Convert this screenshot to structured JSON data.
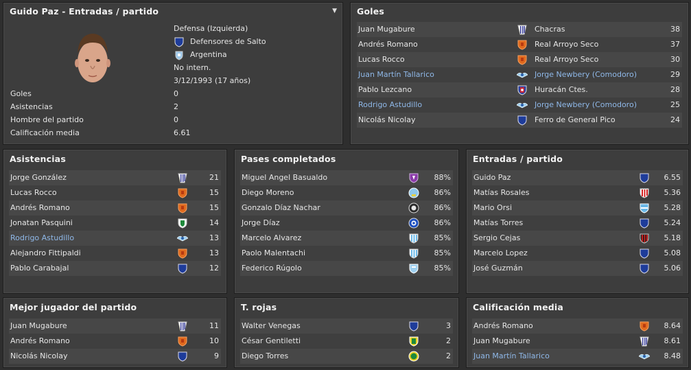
{
  "player": {
    "title": "Guido Paz - Entradas / partido",
    "position": "Defensa (Izquierda)",
    "club": "Defensores de Salto",
    "nation": "Argentina",
    "intl": "No intern.",
    "dob": "3/12/1993 (17 años)",
    "stats": [
      {
        "label": "Goles",
        "value": "0"
      },
      {
        "label": "Asistencias",
        "value": "2"
      },
      {
        "label": "Hombre del partido",
        "value": "0"
      },
      {
        "label": "Calificación media",
        "value": "6.61"
      }
    ]
  },
  "goles": {
    "title": "Goles",
    "rows": [
      {
        "name": "Juan Mugabure",
        "team": "Chacras",
        "value": "38",
        "link": false,
        "badge": "stripes-white"
      },
      {
        "name": "Andrés Romano",
        "team": "Real Arroyo Seco",
        "value": "37",
        "link": false,
        "badge": "shield-orange"
      },
      {
        "name": "Lucas Rocco",
        "team": "Real Arroyo Seco",
        "value": "30",
        "link": false,
        "badge": "shield-orange"
      },
      {
        "name": "Juan Martín Tallarico",
        "team": "Jorge Newbery (Comodoro)",
        "value": "29",
        "link": true,
        "badge": "wings"
      },
      {
        "name": "Pablo Lezcano",
        "team": "Huracán Ctes.",
        "value": "28",
        "link": false,
        "badge": "shield-red-blue"
      },
      {
        "name": "Rodrigo Astudillo",
        "team": "Jorge Newbery (Comodoro)",
        "value": "25",
        "link": true,
        "badge": "wings"
      },
      {
        "name": "Nicolás Nicolay",
        "team": "Ferro de General Pico",
        "value": "24",
        "link": false,
        "badge": "shield-blue"
      }
    ]
  },
  "asistencias": {
    "title": "Asistencias",
    "rows": [
      {
        "name": "Jorge González",
        "value": "21",
        "link": false,
        "badge": "stripes-white"
      },
      {
        "name": "Lucas Rocco",
        "value": "15",
        "link": false,
        "badge": "shield-orange"
      },
      {
        "name": "Andrés Romano",
        "value": "15",
        "link": false,
        "badge": "shield-orange"
      },
      {
        "name": "Jonatan Pasquini",
        "value": "14",
        "link": false,
        "badge": "shield-green"
      },
      {
        "name": "Rodrigo Astudillo",
        "value": "13",
        "link": true,
        "badge": "wings"
      },
      {
        "name": "Alejandro Fittipaldi",
        "value": "13",
        "link": false,
        "badge": "shield-orange"
      },
      {
        "name": "Pablo Carabajal",
        "value": "12",
        "link": false,
        "badge": "shield-blue"
      }
    ]
  },
  "pases": {
    "title": "Pases completados",
    "rows": [
      {
        "name": "Miguel Angel Basualdo",
        "value": "88%",
        "link": false,
        "badge": "shield-purple"
      },
      {
        "name": "Diego Moreno",
        "value": "86%",
        "link": false,
        "badge": "round-lightblue"
      },
      {
        "name": "Gonzalo Díaz Nachar",
        "value": "86%",
        "link": false,
        "badge": "round-dark"
      },
      {
        "name": "Jorge Díaz",
        "value": "86%",
        "link": false,
        "badge": "round-blue"
      },
      {
        "name": "Marcelo Alvarez",
        "value": "85%",
        "link": false,
        "badge": "stripes-lightblue"
      },
      {
        "name": "Paolo Malentachi",
        "value": "85%",
        "link": false,
        "badge": "stripes-lightblue"
      },
      {
        "name": "Federico Rúgolo",
        "value": "85%",
        "link": false,
        "badge": "shield-lightblue"
      }
    ]
  },
  "entradas": {
    "title": "Entradas / partido",
    "rows": [
      {
        "name": "Guido Paz",
        "value": "6.55",
        "link": false,
        "badge": "shield-blue"
      },
      {
        "name": "Matías Rosales",
        "value": "5.36",
        "link": false,
        "badge": "stripes-red"
      },
      {
        "name": "Mario Orsi",
        "value": "5.28",
        "link": false,
        "badge": "shield-sky"
      },
      {
        "name": "Matías Torres",
        "value": "5.24",
        "link": false,
        "badge": "shield-blue"
      },
      {
        "name": "Sergio Cejas",
        "value": "5.18",
        "link": false,
        "badge": "stripes-redblack"
      },
      {
        "name": "Marcelo Lopez",
        "value": "5.08",
        "link": false,
        "badge": "shield-blue"
      },
      {
        "name": "José Guzmán",
        "value": "5.06",
        "link": false,
        "badge": "shield-blue"
      }
    ]
  },
  "mejor": {
    "title": "Mejor jugador del partido",
    "rows": [
      {
        "name": "Juan Mugabure",
        "value": "11",
        "link": false,
        "badge": "stripes-white"
      },
      {
        "name": "Andrés Romano",
        "value": "10",
        "link": false,
        "badge": "shield-orange"
      },
      {
        "name": "Nicolás Nicolay",
        "value": "9",
        "link": false,
        "badge": "shield-blue"
      }
    ]
  },
  "rojas": {
    "title": "T. rojas",
    "rows": [
      {
        "name": "Walter Venegas",
        "value": "3",
        "link": false,
        "badge": "shield-blue"
      },
      {
        "name": "César Gentiletti",
        "value": "2",
        "link": false,
        "badge": "shield-yellowgreen"
      },
      {
        "name": "Diego Torres",
        "value": "2",
        "link": false,
        "badge": "round-green"
      }
    ]
  },
  "calificacion": {
    "title": "Calificación media",
    "rows": [
      {
        "name": "Andrés Romano",
        "value": "8.64",
        "link": false,
        "badge": "shield-orange"
      },
      {
        "name": "Juan Mugabure",
        "value": "8.61",
        "link": false,
        "badge": "stripes-white"
      },
      {
        "name": "Juan Martín Tallarico",
        "value": "8.48",
        "link": true,
        "badge": "wings"
      }
    ]
  },
  "colors": {
    "link": "#8fb8e8",
    "panel": "#3d3d3d",
    "background": "#2e2e2e"
  }
}
